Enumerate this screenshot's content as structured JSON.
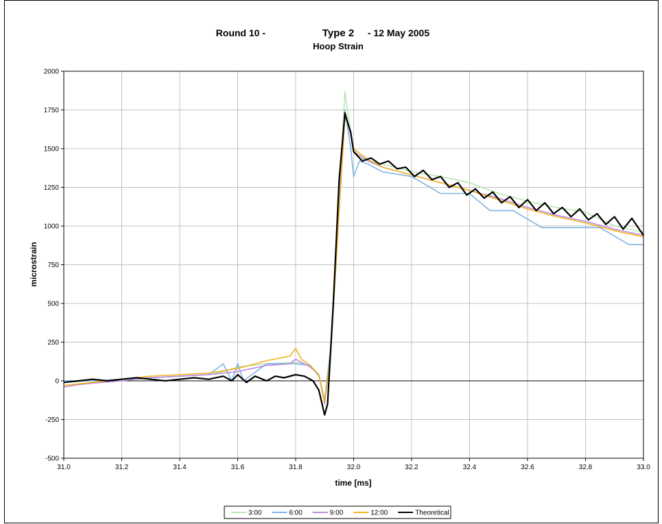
{
  "chart_data": {
    "type": "line",
    "title_parts": [
      "Round 10 -",
      "Type 2",
      "- 12 May 2005"
    ],
    "subtitle": "Hoop Strain",
    "xlabel": "time [ms]",
    "ylabel": "microstrain",
    "xlim": [
      31.0,
      33.0
    ],
    "ylim": [
      -500,
      2000
    ],
    "x_ticks": [
      "31.0",
      "31.2",
      "31.4",
      "31.6",
      "31.8",
      "32.0",
      "32.2",
      "32.4",
      "32.6",
      "32.8",
      "33.0"
    ],
    "y_ticks": [
      "2000",
      "1750",
      "1500",
      "1250",
      "1000",
      "750",
      "500",
      "250",
      "0",
      "-250",
      "-500"
    ],
    "grid": true,
    "legend_position": "bottom",
    "series": [
      {
        "name": "3:00",
        "color": "#b8e6b0",
        "x": [
          31.0,
          31.1,
          31.2,
          31.3,
          31.4,
          31.5,
          31.55,
          31.6,
          31.7,
          31.8,
          31.85,
          31.88,
          31.9,
          31.92,
          31.95,
          31.97,
          31.99,
          32.0,
          32.02,
          32.05,
          32.1,
          32.2,
          32.3,
          32.4,
          32.5,
          32.6,
          32.7,
          32.8,
          32.9,
          33.0
        ],
        "y": [
          -10,
          0,
          10,
          20,
          30,
          40,
          60,
          90,
          110,
          120,
          100,
          40,
          -120,
          200,
          1200,
          1870,
          1600,
          1500,
          1440,
          1420,
          1400,
          1350,
          1320,
          1280,
          1210,
          1160,
          1120,
          1090,
          1000,
          960
        ]
      },
      {
        "name": "6:00",
        "color": "#7fb2e5",
        "x": [
          31.0,
          31.1,
          31.2,
          31.3,
          31.4,
          31.5,
          31.55,
          31.58,
          31.6,
          31.62,
          31.7,
          31.8,
          31.85,
          31.88,
          31.9,
          31.92,
          31.95,
          31.97,
          31.99,
          32.0,
          32.02,
          32.05,
          32.1,
          32.2,
          32.3,
          32.4,
          32.47,
          32.55,
          32.65,
          32.75,
          32.85,
          32.95,
          33.0
        ],
        "y": [
          0,
          0,
          10,
          20,
          30,
          40,
          110,
          0,
          110,
          0,
          110,
          110,
          100,
          30,
          -130,
          200,
          1200,
          1750,
          1500,
          1320,
          1420,
          1400,
          1350,
          1320,
          1210,
          1210,
          1100,
          1100,
          990,
          990,
          990,
          880,
          880
        ]
      },
      {
        "name": "9:00",
        "color": "#b888e0",
        "x": [
          31.0,
          31.05,
          31.1,
          31.2,
          31.3,
          31.4,
          31.5,
          31.6,
          31.7,
          31.78,
          31.8,
          31.85,
          31.88,
          31.9,
          31.92,
          31.95,
          31.97,
          31.99,
          32.0,
          32.05,
          32.1,
          32.2,
          32.3,
          32.4,
          32.5,
          32.6,
          32.7,
          32.8,
          32.9,
          33.0
        ],
        "y": [
          -40,
          -25,
          -15,
          0,
          20,
          30,
          40,
          60,
          100,
          110,
          140,
          90,
          40,
          -150,
          150,
          1100,
          1700,
          1620,
          1480,
          1420,
          1380,
          1330,
          1280,
          1230,
          1180,
          1120,
          1070,
          1030,
          980,
          940
        ]
      },
      {
        "name": "12:00",
        "color": "#f2b21a",
        "x": [
          31.0,
          31.05,
          31.1,
          31.2,
          31.3,
          31.4,
          31.5,
          31.6,
          31.7,
          31.78,
          31.8,
          31.82,
          31.85,
          31.88,
          31.9,
          31.92,
          31.95,
          31.97,
          31.99,
          32.0,
          32.02,
          32.05,
          32.1,
          32.2,
          32.3,
          32.4,
          32.5,
          32.6,
          32.7,
          32.8,
          32.9,
          33.0
        ],
        "y": [
          -30,
          -20,
          -10,
          10,
          30,
          40,
          50,
          80,
          130,
          160,
          210,
          140,
          100,
          40,
          -140,
          150,
          1100,
          1720,
          1600,
          1500,
          1470,
          1430,
          1380,
          1330,
          1280,
          1230,
          1170,
          1110,
          1060,
          1020,
          970,
          930
        ]
      },
      {
        "name": "Theoretical",
        "color": "#000000",
        "x": [
          31.0,
          31.05,
          31.1,
          31.15,
          31.2,
          31.25,
          31.3,
          31.35,
          31.4,
          31.45,
          31.5,
          31.55,
          31.58,
          31.6,
          31.63,
          31.66,
          31.7,
          31.73,
          31.76,
          31.8,
          31.83,
          31.86,
          31.88,
          31.9,
          31.91,
          31.93,
          31.95,
          31.97,
          31.99,
          32.0,
          32.03,
          32.06,
          32.09,
          32.12,
          32.15,
          32.18,
          32.21,
          32.24,
          32.27,
          32.3,
          32.33,
          32.36,
          32.39,
          32.42,
          32.45,
          32.48,
          32.51,
          32.54,
          32.57,
          32.6,
          32.63,
          32.66,
          32.69,
          32.72,
          32.75,
          32.78,
          32.81,
          32.84,
          32.87,
          32.9,
          32.93,
          32.96,
          33.0
        ],
        "y": [
          -10,
          0,
          10,
          0,
          10,
          20,
          10,
          0,
          10,
          20,
          10,
          30,
          0,
          40,
          -10,
          30,
          0,
          30,
          20,
          40,
          30,
          0,
          -60,
          -220,
          -150,
          500,
          1300,
          1730,
          1600,
          1480,
          1420,
          1440,
          1400,
          1420,
          1370,
          1380,
          1320,
          1360,
          1300,
          1320,
          1250,
          1280,
          1200,
          1240,
          1180,
          1220,
          1150,
          1190,
          1120,
          1170,
          1100,
          1150,
          1080,
          1120,
          1060,
          1110,
          1040,
          1080,
          1010,
          1060,
          980,
          1050,
          940
        ]
      }
    ]
  }
}
